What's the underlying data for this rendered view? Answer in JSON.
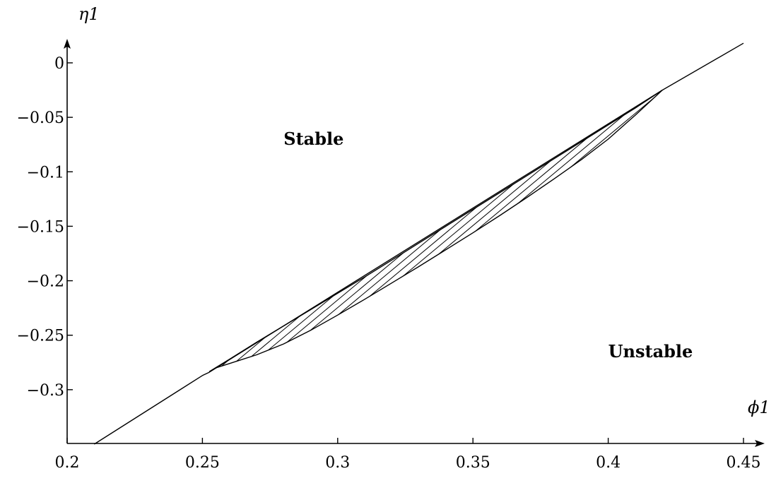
{
  "chart_data": {
    "type": "line",
    "title": "",
    "xlabel": "ϕ1",
    "ylabel": "η1",
    "xlim": [
      0.2,
      0.455
    ],
    "ylim": [
      -0.35,
      0.025
    ],
    "grid": false,
    "x_ticks": [
      {
        "value": 0.2,
        "label": "0.2"
      },
      {
        "value": 0.25,
        "label": "0.25"
      },
      {
        "value": 0.3,
        "label": "0.3"
      },
      {
        "value": 0.35,
        "label": "0.35"
      },
      {
        "value": 0.4,
        "label": "0.4"
      },
      {
        "value": 0.45,
        "label": "0.45"
      }
    ],
    "y_ticks": [
      {
        "value": 0,
        "label": "0"
      },
      {
        "value": -0.05,
        "label": "−0.05"
      },
      {
        "value": -0.1,
        "label": "−0.1"
      },
      {
        "value": -0.15,
        "label": "−0.15"
      },
      {
        "value": -0.2,
        "label": "−0.2"
      },
      {
        "value": -0.25,
        "label": "−0.25"
      },
      {
        "value": -0.3,
        "label": "−0.3"
      }
    ],
    "series": [
      {
        "x": [
          0.21,
          0.25,
          0.2525,
          0.42,
          0.45
        ],
        "y": [
          -0.35,
          -0.287,
          -0.284,
          -0.025,
          0.018
        ]
      },
      {
        "x": [
          0.2525,
          0.26,
          0.27,
          0.28,
          0.29,
          0.3,
          0.31,
          0.32,
          0.33,
          0.34,
          0.35,
          0.36,
          0.37,
          0.38,
          0.39,
          0.4,
          0.41,
          0.42
        ],
        "y": [
          -0.2835,
          -0.272,
          -0.2565,
          -0.2415,
          -0.2265,
          -0.2115,
          -0.1965,
          -0.181,
          -0.1655,
          -0.15,
          -0.1345,
          -0.119,
          -0.1035,
          -0.088,
          -0.0725,
          -0.057,
          -0.0415,
          -0.025
        ]
      },
      {
        "x": [
          0.255,
          0.26,
          0.27,
          0.28,
          0.29,
          0.3,
          0.31,
          0.32,
          0.33,
          0.34,
          0.35,
          0.36,
          0.37,
          0.38,
          0.39,
          0.4,
          0.41,
          0.42
        ],
        "y": [
          -0.28,
          -0.276,
          -0.268,
          -0.258,
          -0.2455,
          -0.2315,
          -0.217,
          -0.202,
          -0.187,
          -0.1715,
          -0.156,
          -0.14,
          -0.1235,
          -0.1065,
          -0.089,
          -0.07,
          -0.048,
          -0.025
        ]
      }
    ],
    "annotations": [
      {
        "text": "Stable",
        "x": 0.28,
        "y": -0.07
      },
      {
        "text": "Unstable",
        "x": 0.4,
        "y": -0.265
      }
    ]
  }
}
